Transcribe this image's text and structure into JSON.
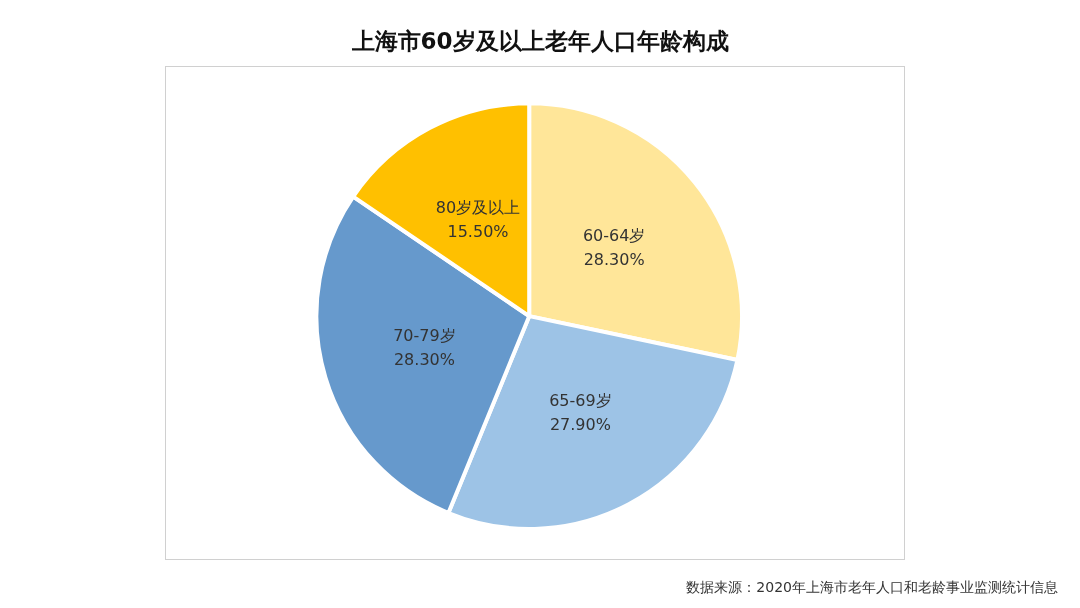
{
  "chart_data": {
    "type": "pie",
    "title": "上海市60岁及以上老年人口年龄构成",
    "categories": [
      "60-64岁",
      "65-69岁",
      "70-79岁",
      "80岁及以上"
    ],
    "values": [
      28.3,
      27.9,
      28.3,
      15.5
    ],
    "colors": [
      "#ffe699",
      "#9dc3e6",
      "#6699cc",
      "#ffc000"
    ],
    "value_labels": [
      "28.30%",
      "27.90%",
      "28.30%",
      "15.50%"
    ],
    "legend": false,
    "annotations": [
      "数据来源：2020年上海市老年人口和老龄事业监测统计信息"
    ]
  }
}
